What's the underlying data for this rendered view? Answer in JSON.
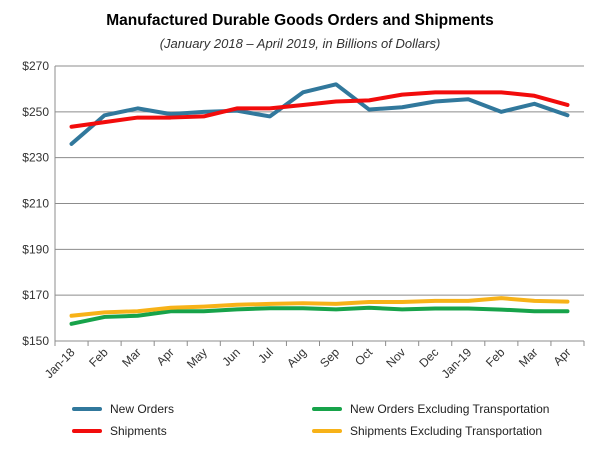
{
  "chart_data": {
    "type": "line",
    "title": "Manufactured Durable Goods Orders and Shipments",
    "subtitle": "(January 2018 – April 2019, in Billions of Dollars)",
    "categories": [
      "Jan-18",
      "Feb",
      "Mar",
      "Apr",
      "May",
      "Jun",
      "Jul",
      "Aug",
      "Sep",
      "Oct",
      "Nov",
      "Dec",
      "Jan-19",
      "Feb",
      "Mar",
      "Apr"
    ],
    "ylim": [
      150,
      270
    ],
    "yticks": [
      150,
      170,
      190,
      210,
      230,
      250,
      270
    ],
    "ytick_labels": [
      "$150",
      "$170",
      "$190",
      "$210",
      "$230",
      "$250",
      "$270"
    ],
    "grid": true,
    "legend_position": "bottom",
    "series": [
      {
        "name": "New Orders",
        "color": "#31789C",
        "values": [
          236,
          248.5,
          251.5,
          249,
          250,
          250.5,
          248,
          258.5,
          262,
          251,
          252,
          254.5,
          255.5,
          250,
          253.5,
          248.5
        ]
      },
      {
        "name": "New Orders Excluding Transportation",
        "color": "#17A34A",
        "values": [
          157.5,
          160.5,
          161,
          163,
          163,
          163.8,
          164.3,
          164.3,
          163.8,
          164.5,
          163.8,
          164.2,
          164.2,
          163.7,
          163,
          163
        ]
      },
      {
        "name": "Shipments",
        "color": "#F20C0C",
        "values": [
          243.5,
          245.5,
          247.5,
          247.5,
          248,
          251.5,
          251.5,
          253,
          254.5,
          255,
          257.5,
          258.5,
          258.5,
          258.5,
          257,
          253
        ]
      },
      {
        "name": "Shipments Excluding Transportation",
        "color": "#F7B218",
        "values": [
          161,
          162.5,
          163,
          164.5,
          165,
          165.8,
          166.2,
          166.5,
          166.2,
          167,
          167,
          167.5,
          167.5,
          168.7,
          167.5,
          167.2
        ]
      }
    ]
  }
}
